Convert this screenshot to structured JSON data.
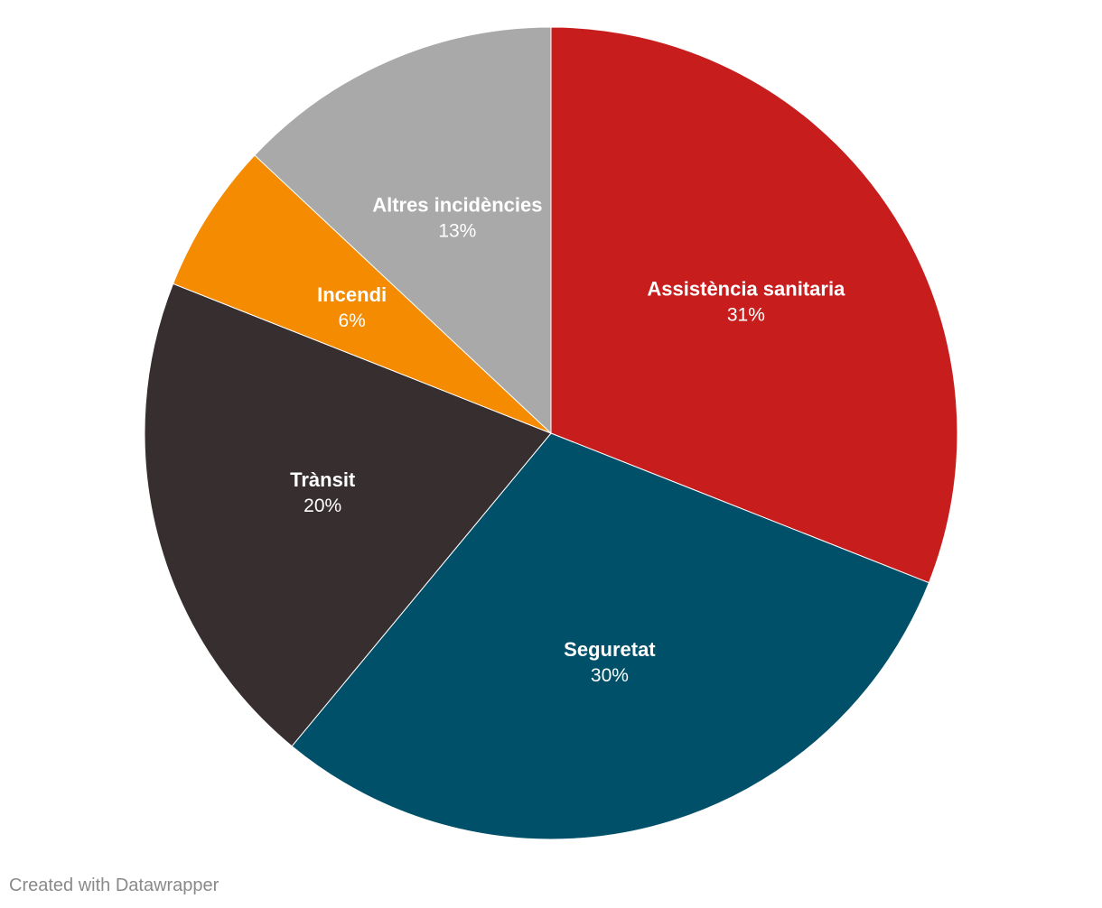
{
  "chart_data": {
    "type": "pie",
    "categories": [
      "Assistència sanitaria",
      "Seguretat",
      "Trànsit",
      "Incendi",
      "Altres incidències"
    ],
    "values": [
      31,
      30,
      20,
      6,
      13
    ],
    "value_labels": [
      "31%",
      "30%",
      "20%",
      "6%",
      "13%"
    ],
    "colors": [
      "#c71e1d",
      "#00506a",
      "#372e30",
      "#f58b00",
      "#a9a9a9"
    ],
    "start": "top",
    "direction": "clockwise"
  },
  "footer": {
    "credit": "Created with Datawrapper"
  }
}
